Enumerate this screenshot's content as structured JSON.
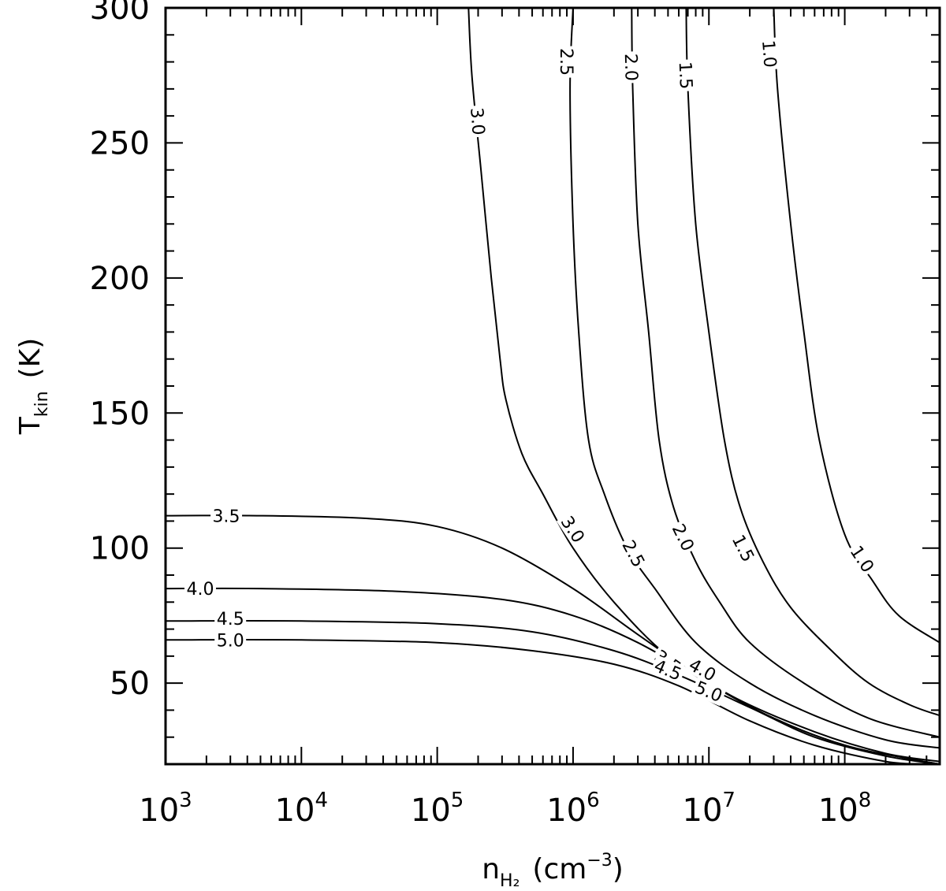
{
  "chart_data": {
    "type": "contour",
    "title": "",
    "xlabel": {
      "main": "n",
      "subscript": "H₂",
      "units": "(cm",
      "units_exp": "−3",
      "units_close": ")"
    },
    "ylabel": {
      "main": "T",
      "subscript": "kin",
      "units": "(K)"
    },
    "xscale": "log",
    "xlim": [
      1000,
      500000000
    ],
    "ylim": [
      20,
      300
    ],
    "grid": false,
    "x_ticks": [
      {
        "base": "10",
        "exp": "3",
        "value": 1000
      },
      {
        "base": "10",
        "exp": "4",
        "value": 10000
      },
      {
        "base": "10",
        "exp": "5",
        "value": 100000
      },
      {
        "base": "10",
        "exp": "6",
        "value": 1000000
      },
      {
        "base": "10",
        "exp": "7",
        "value": 10000000
      },
      {
        "base": "10",
        "exp": "8",
        "value": 100000000
      }
    ],
    "y_ticks": [
      "50",
      "100",
      "150",
      "200",
      "250",
      "300"
    ],
    "levels": [
      {
        "level": "1.0",
        "points": [
          [
            30000000,
            300
          ],
          [
            32000000,
            270
          ],
          [
            40000000,
            220
          ],
          [
            50000000,
            180
          ],
          [
            65000000,
            140
          ],
          [
            100000000,
            105
          ],
          [
            160000000,
            88
          ],
          [
            250000000,
            75
          ],
          [
            500000000,
            65
          ]
        ],
        "labels": [
          [
            28000000,
            283
          ],
          [
            135000000,
            96
          ]
        ]
      },
      {
        "level": "1.5",
        "points": [
          [
            6800000,
            300
          ],
          [
            7000000,
            270
          ],
          [
            8000000,
            220
          ],
          [
            10000000,
            180
          ],
          [
            13000000,
            140
          ],
          [
            17000000,
            115
          ],
          [
            25000000,
            95
          ],
          [
            40000000,
            78
          ],
          [
            80000000,
            62
          ],
          [
            150000000,
            50
          ],
          [
            300000000,
            42
          ],
          [
            500000000,
            38
          ]
        ],
        "labels": [
          [
            6800000,
            275
          ],
          [
            18000000,
            100
          ]
        ]
      },
      {
        "level": "2.0",
        "points": [
          [
            2700000,
            300
          ],
          [
            2750000,
            270
          ],
          [
            3000000,
            220
          ],
          [
            3600000,
            180
          ],
          [
            4300000,
            140
          ],
          [
            5500000,
            115
          ],
          [
            8000000,
            95
          ],
          [
            12000000,
            80
          ],
          [
            20000000,
            65
          ],
          [
            50000000,
            50
          ],
          [
            150000000,
            37
          ],
          [
            500000000,
            30
          ]
        ],
        "labels": [
          [
            2700000,
            278
          ],
          [
            6500000,
            104
          ]
        ]
      },
      {
        "level": "2.5",
        "points": [
          [
            1000000,
            300
          ],
          [
            950000,
            270
          ],
          [
            1000000,
            220
          ],
          [
            1100000,
            180
          ],
          [
            1300000,
            140
          ],
          [
            1700000,
            120
          ],
          [
            2500000,
            100
          ],
          [
            4000000,
            85
          ],
          [
            8000000,
            65
          ],
          [
            20000000,
            50
          ],
          [
            60000000,
            38
          ],
          [
            200000000,
            29
          ],
          [
            500000000,
            26
          ]
        ],
        "labels": [
          [
            900000,
            280
          ],
          [
            2800000,
            98
          ]
        ]
      },
      {
        "level": "3.0",
        "points": [
          [
            170000,
            300
          ],
          [
            180000,
            275
          ],
          [
            210000,
            240
          ],
          [
            250000,
            200
          ],
          [
            290000,
            170
          ],
          [
            320000,
            155
          ],
          [
            420000,
            135
          ],
          [
            600000,
            120
          ],
          [
            1000000,
            100
          ],
          [
            2000000,
            80
          ],
          [
            5000000,
            60
          ],
          [
            15000000,
            45
          ],
          [
            60000000,
            32
          ],
          [
            200000000,
            24
          ],
          [
            500000000,
            21
          ]
        ],
        "labels": [
          [
            200000,
            258
          ],
          [
            1000000,
            107
          ]
        ]
      },
      {
        "level": "3.5",
        "points": [
          [
            1000,
            112
          ],
          [
            5000,
            112
          ],
          [
            30000,
            111
          ],
          [
            100000,
            108
          ],
          [
            300000,
            100
          ],
          [
            1000000,
            85
          ],
          [
            3000000,
            68
          ],
          [
            10000000,
            50
          ],
          [
            30000000,
            37
          ],
          [
            100000000,
            27
          ],
          [
            300000000,
            22
          ],
          [
            500000000,
            20
          ]
        ],
        "labels": [
          [
            2800,
            112
          ],
          [
            5000000,
            58
          ]
        ]
      },
      {
        "level": "4.0",
        "points": [
          [
            1000,
            85
          ],
          [
            5000,
            85
          ],
          [
            50000,
            84
          ],
          [
            300000,
            81
          ],
          [
            1000000,
            75
          ],
          [
            3000000,
            65
          ],
          [
            10000000,
            50
          ],
          [
            30000000,
            37
          ],
          [
            100000000,
            27
          ],
          [
            300000000,
            22
          ],
          [
            500000000,
            20
          ]
        ],
        "labels": [
          [
            1800,
            85
          ],
          [
            9000000,
            55
          ]
        ]
      },
      {
        "level": "4.5",
        "points": [
          [
            1000,
            73
          ],
          [
            10000,
            73
          ],
          [
            100000,
            72
          ],
          [
            500000,
            69
          ],
          [
            2000000,
            62
          ],
          [
            6000000,
            53
          ],
          [
            20000000,
            41
          ],
          [
            60000000,
            30
          ],
          [
            200000000,
            23
          ],
          [
            500000000,
            20
          ]
        ],
        "labels": [
          [
            3000,
            74
          ],
          [
            5000000,
            55
          ]
        ]
      },
      {
        "level": "5.0",
        "points": [
          [
            1000,
            66
          ],
          [
            10000,
            66
          ],
          [
            100000,
            65
          ],
          [
            500000,
            62
          ],
          [
            2000000,
            57
          ],
          [
            6000000,
            49
          ],
          [
            20000000,
            36
          ],
          [
            60000000,
            27
          ],
          [
            200000000,
            21
          ],
          [
            400000000,
            20
          ]
        ],
        "labels": [
          [
            3000,
            66
          ],
          [
            10000000,
            47
          ]
        ]
      }
    ]
  }
}
